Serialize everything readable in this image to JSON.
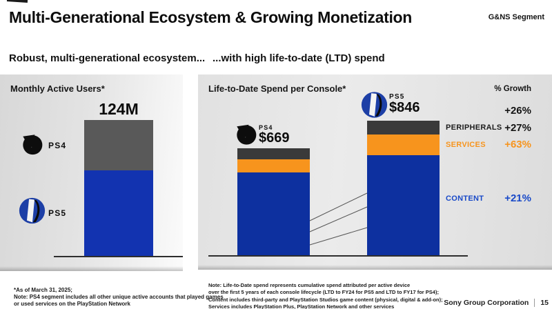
{
  "header": {
    "title": "Multi-Generational Ecosystem & Growing Monetization",
    "segment_badge": "G&NS Segment"
  },
  "subtitle": {
    "left": "Robust, multi-generational ecosystem...",
    "right": "...with high life-to-date (LTD) spend"
  },
  "chart_data": [
    {
      "type": "bar",
      "variant": "stacked-single-bar",
      "title": "Monthly Active Users*",
      "total_label": "124M",
      "total_value_m": 124,
      "unit": "millions of monthly active users",
      "segments": [
        {
          "name": "PS4",
          "color": "#595959",
          "est_value_m": 46
        },
        {
          "name": "PS5",
          "color": "#1233b0",
          "est_value_m": 78
        }
      ],
      "note": "Only the 124M total is labeled; PS4/PS5 split estimated from bar proportions"
    },
    {
      "type": "bar",
      "variant": "stacked",
      "title": "Life-to-Date Spend per Console*",
      "growth_header": "% Growth",
      "unit": "USD per console",
      "categories": [
        "PS4",
        "PS5"
      ],
      "bars": [
        {
          "name": "PS4",
          "total_label": "$669",
          "total_usd": 669,
          "segments_usd": {
            "content": 521,
            "services": 80,
            "peripherals": 68
          }
        },
        {
          "name": "PS5",
          "total_label": "$846",
          "total_usd": 846,
          "segments_usd": {
            "content": 630,
            "services": 130,
            "peripherals": 86
          }
        }
      ],
      "legend_labels": {
        "peripherals": "PERIPHERALS",
        "services": "SERVICES",
        "content": "CONTENT"
      },
      "growth": {
        "total": "+26%",
        "peripherals": "+27%",
        "services": "+63%",
        "content": "+21%"
      },
      "colors": {
        "content": "#0d309f",
        "services": "#f7941d",
        "peripherals": "#3a3a3a"
      },
      "note": "Only totals and growth % are labeled; per-segment dollar values estimated from bar proportions"
    }
  ],
  "footnotes": {
    "left": [
      "*As of March 31, 2025;",
      "Note: PS4 segment includes all other unique active accounts that played games",
      "or used services on the PlayStation Network"
    ],
    "right": [
      "Note: Life-to-Date spend represents cumulative spend attributed per active device",
      "over the first 5 years of each console lifecycle (LTD to FY24 for PS5 and LTD to FY17 for PS4);",
      "Content includes third-party and PlayStation Studios game content (physical, digital & add-on);",
      "Services includes PlayStation Plus, PlayStation Network and other services"
    ]
  },
  "footer": {
    "company": "Sony Group Corporation",
    "page": "15"
  }
}
